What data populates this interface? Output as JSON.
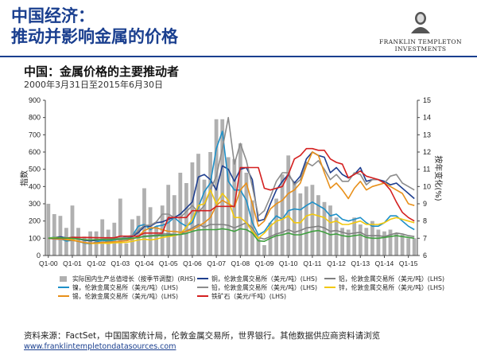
{
  "header": {
    "title_line1": "中国经济：",
    "title_line2": "推动并影响金属的价格",
    "logo_line1": "FRANKLIN TEMPLETON",
    "logo_line2": "INVESTMENTS"
  },
  "chart_data": {
    "type": "line",
    "title": "中国：金属价格的主要推动者",
    "subtitle": "2000年3月31日至2015年6月30日",
    "ylabel_left": "指数",
    "ylabel_right": "按年变化(%)",
    "ylim_left": [
      0,
      900
    ],
    "ylim_right": [
      6,
      15
    ],
    "yticks_left": [
      "0",
      "100",
      "200",
      "300",
      "400",
      "500",
      "600",
      "700",
      "800",
      "900"
    ],
    "yticks_right": [
      "6",
      "7",
      "8",
      "9",
      "10",
      "11",
      "12",
      "13",
      "14",
      "15"
    ],
    "x_tick_labels": [
      "Q1-00",
      "Q1-01",
      "Q1-02",
      "Q1-03",
      "Q1-04",
      "Q1-05",
      "Q1-06",
      "Q1-07",
      "Q1-08",
      "Q1-09",
      "Q1-10",
      "Q1-11",
      "Q1-12",
      "Q1-13",
      "Q1-14",
      "Q1-15"
    ],
    "grid": false,
    "legend_position": "bottom",
    "x": [
      "Q1-00",
      "Q2-00",
      "Q3-00",
      "Q4-00",
      "Q1-01",
      "Q2-01",
      "Q3-01",
      "Q4-01",
      "Q1-02",
      "Q2-02",
      "Q3-02",
      "Q4-02",
      "Q1-03",
      "Q2-03",
      "Q3-03",
      "Q4-03",
      "Q1-04",
      "Q2-04",
      "Q3-04",
      "Q4-04",
      "Q1-05",
      "Q2-05",
      "Q3-05",
      "Q4-05",
      "Q1-06",
      "Q2-06",
      "Q3-06",
      "Q4-06",
      "Q1-07",
      "Q2-07",
      "Q3-07",
      "Q4-07",
      "Q1-08",
      "Q2-08",
      "Q3-08",
      "Q4-08",
      "Q1-09",
      "Q2-09",
      "Q3-09",
      "Q4-09",
      "Q1-10",
      "Q2-10",
      "Q3-10",
      "Q4-10",
      "Q1-11",
      "Q2-11",
      "Q3-11",
      "Q4-11",
      "Q1-12",
      "Q2-12",
      "Q3-12",
      "Q4-12",
      "Q1-13",
      "Q2-13",
      "Q3-13",
      "Q4-13",
      "Q1-14",
      "Q2-14",
      "Q3-14",
      "Q4-14",
      "Q1-15",
      "Q2-15"
    ],
    "bars": {
      "name": "实际国内生产总值增长（按季节调整）(RHS)",
      "axis": "right",
      "color": "#b0b0b0",
      "values": [
        9.0,
        8.4,
        8.3,
        7.6,
        8.9,
        7.6,
        7.1,
        7.4,
        7.4,
        8.1,
        7.5,
        7.9,
        9.3,
        6.7,
        8.1,
        8.3,
        9.9,
        8.8,
        7.7,
        8.9,
        10.1,
        9.5,
        10.8,
        10.2,
        11.4,
        11.9,
        10.4,
        12.0,
        13.9,
        13.9,
        11.7,
        11.6,
        12.5,
        10.8,
        9.2,
        7.0,
        6.6,
        7.9,
        9.3,
        10.7,
        11.8,
        10.3,
        9.6,
        10.0,
        10.1,
        9.5,
        9.1,
        8.9,
        8.2,
        7.6,
        7.5,
        8.2,
        7.8,
        7.6,
        8.0,
        7.5,
        7.4,
        7.5,
        7.3,
        7.2,
        7.0,
        7.0
      ]
    },
    "series": [
      {
        "name": "铜，伦敦金属交易所（美元/吨）(LHS)",
        "color": "#1f3f8f",
        "values": [
          100,
          104,
          109,
          102,
          103,
          95,
          88,
          85,
          88,
          93,
          90,
          95,
          96,
          103,
          110,
          133,
          168,
          170,
          190,
          195,
          210,
          220,
          240,
          275,
          310,
          455,
          470,
          440,
          380,
          520,
          500,
          430,
          500,
          510,
          440,
          200,
          210,
          300,
          380,
          430,
          470,
          420,
          460,
          560,
          600,
          580,
          570,
          480,
          510,
          470,
          450,
          470,
          510,
          430,
          440,
          440,
          430,
          410,
          420,
          390,
          360,
          330
        ]
      },
      {
        "name": "铝，伦敦金属交易所（美元/吨）(LHS)",
        "color": "#808080",
        "values": [
          100,
          99,
          101,
          103,
          102,
          97,
          91,
          90,
          92,
          91,
          89,
          92,
          92,
          93,
          97,
          106,
          112,
          116,
          119,
          124,
          126,
          122,
          122,
          142,
          160,
          180,
          165,
          180,
          180,
          180,
          175,
          160,
          175,
          190,
          160,
          105,
          95,
          110,
          125,
          135,
          150,
          135,
          145,
          160,
          165,
          170,
          160,
          140,
          145,
          135,
          125,
          130,
          135,
          115,
          115,
          115,
          110,
          120,
          130,
          125,
          115,
          110
        ]
      },
      {
        "name": "镍，伦敦金属交易所（美元/吨）(LHS)",
        "color": "#1e90c8",
        "values": [
          100,
          106,
          97,
          84,
          88,
          81,
          72,
          68,
          78,
          88,
          82,
          90,
          98,
          110,
          115,
          170,
          180,
          150,
          170,
          175,
          190,
          220,
          190,
          170,
          190,
          280,
          370,
          420,
          620,
          720,
          430,
          380,
          380,
          320,
          190,
          120,
          140,
          190,
          230,
          210,
          260,
          270,
          265,
          290,
          310,
          290,
          270,
          230,
          240,
          210,
          200,
          210,
          220,
          190,
          170,
          170,
          190,
          230,
          230,
          200,
          170,
          150
        ]
      },
      {
        "name": "铅，伦敦金属交易所（美元/吨）(LHS)",
        "color": "#8c8c8c",
        "values": [
          100,
          95,
          93,
          100,
          107,
          105,
          105,
          102,
          105,
          103,
          98,
          100,
          100,
          104,
          115,
          145,
          175,
          175,
          195,
          240,
          240,
          220,
          220,
          255,
          290,
          250,
          290,
          380,
          460,
          620,
          800,
          530,
          650,
          550,
          400,
          230,
          260,
          340,
          430,
          480,
          480,
          410,
          440,
          540,
          520,
          550,
          500,
          440,
          470,
          430,
          430,
          480,
          470,
          410,
          440,
          440,
          420,
          460,
          470,
          420,
          400,
          380
        ]
      },
      {
        "name": "锌，伦敦金属交易所（美元/吨）(LHS)",
        "color": "#f2c80f",
        "values": [
          100,
          104,
          103,
          95,
          92,
          82,
          75,
          70,
          70,
          72,
          70,
          74,
          75,
          76,
          82,
          90,
          95,
          90,
          95,
          105,
          110,
          115,
          125,
          165,
          210,
          290,
          300,
          380,
          300,
          360,
          320,
          220,
          220,
          190,
          140,
          100,
          130,
          170,
          200,
          210,
          230,
          190,
          190,
          230,
          240,
          230,
          220,
          190,
          200,
          180,
          180,
          190,
          200,
          180,
          180,
          180,
          190,
          210,
          220,
          210,
          200,
          190
        ]
      },
      {
        "name": "锡，伦敦金属交易所（美元/吨）(LHS)",
        "color": "#e8901a",
        "values": [
          100,
          98,
          96,
          92,
          88,
          82,
          75,
          72,
          74,
          76,
          78,
          80,
          82,
          85,
          95,
          110,
          145,
          160,
          160,
          150,
          140,
          140,
          135,
          140,
          150,
          170,
          190,
          220,
          290,
          320,
          300,
          280,
          380,
          420,
          300,
          170,
          200,
          270,
          300,
          320,
          360,
          380,
          420,
          520,
          600,
          580,
          480,
          390,
          420,
          380,
          330,
          390,
          430,
          380,
          400,
          410,
          420,
          400,
          380,
          360,
          300,
          290
        ]
      },
      {
        "name": "铁矿石（美元/千吨）(LHS)",
        "color": "#d42020",
        "values": [
          100,
          100,
          100,
          100,
          105,
          105,
          105,
          105,
          103,
          103,
          103,
          103,
          112,
          112,
          112,
          112,
          130,
          130,
          130,
          130,
          220,
          220,
          220,
          220,
          260,
          260,
          260,
          260,
          285,
          285,
          285,
          285,
          510,
          510,
          510,
          510,
          390,
          380,
          390,
          400,
          470,
          560,
          580,
          620,
          620,
          610,
          610,
          560,
          540,
          530,
          450,
          470,
          490,
          460,
          450,
          440,
          420,
          380,
          310,
          250,
          220,
          200
        ]
      },
      {
        "name": "铝",
        "color": "#40a040",
        "values": [
          100,
          101,
          102,
          101,
          99,
          96,
          92,
          90,
          92,
          93,
          92,
          94,
          96,
          98,
          100,
          104,
          110,
          112,
          114,
          116,
          118,
          120,
          122,
          128,
          140,
          148,
          150,
          150,
          150,
          155,
          150,
          140,
          155,
          150,
          130,
          85,
          82,
          100,
          115,
          120,
          130,
          120,
          120,
          130,
          140,
          145,
          135,
          120,
          125,
          115,
          110,
          115,
          120,
          105,
          100,
          100,
          105,
          110,
          115,
          110,
          105,
          100
        ]
      }
    ],
    "legend": [
      {
        "name": "实际国内生产总值增长（按季节调整）(RHS)",
        "color": "#b0b0b0",
        "kind": "bar"
      },
      {
        "name": "铜，伦敦金属交易所（美元/吨）(LHS)",
        "color": "#1f3f8f",
        "kind": "line"
      },
      {
        "name": "铝，伦敦金属交易所（美元/吨）(LHS)",
        "color": "#808080",
        "kind": "line"
      },
      {
        "name": "镍，伦敦金属交易所（美元/吨）(LHS)",
        "color": "#1e90c8",
        "kind": "line"
      },
      {
        "name": "铅，伦敦金属交易所（美元/吨）(LHS)",
        "color": "#8c8c8c",
        "kind": "line"
      },
      {
        "name": "锌，伦敦金属交易所（美元/吨）(LHS)",
        "color": "#f2c80f",
        "kind": "line"
      },
      {
        "name": "锡，伦敦金属交易所（美元/吨）(LHS)",
        "color": "#e8901a",
        "kind": "line"
      },
      {
        "name": "铁矿石（美元/千吨）(LHS)",
        "color": "#d42020",
        "kind": "line"
      }
    ]
  },
  "footer": {
    "source": "资料来源：FactSet，中国国家统计局，伦敦金属交易所，世界银行。其他数据供应商资料请浏览",
    "link": "www.franklintempletondatasources.com"
  }
}
